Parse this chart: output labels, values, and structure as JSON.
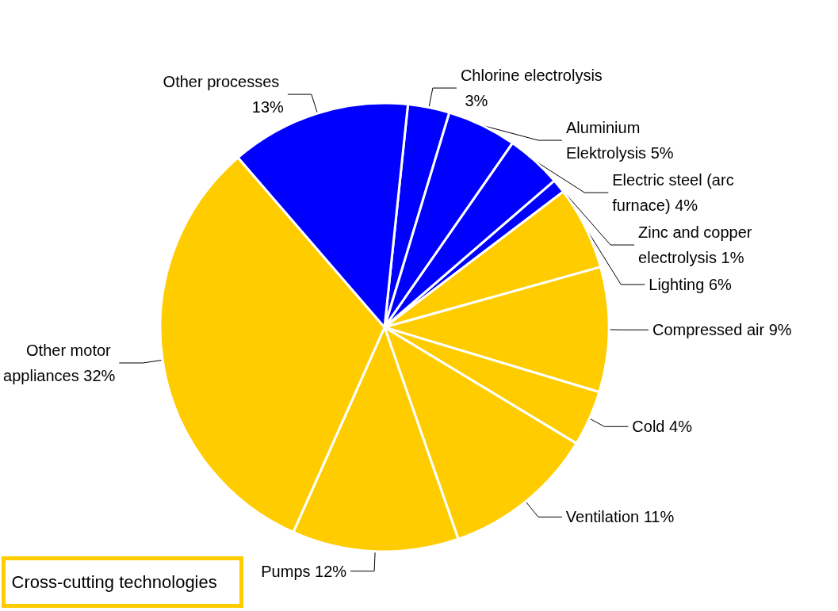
{
  "chart_data": {
    "type": "pie",
    "categories": [
      "Chlorine electrolysis",
      "Aluminium Elektrolysis",
      "Electric steel (arc furnace)",
      "Zinc and copper electrolysis",
      "Lighting",
      "Compressed air",
      "Cold",
      "Ventilation",
      "Pumps",
      "Other motor appliances",
      "Other processes"
    ],
    "values": [
      3,
      5,
      4,
      1,
      6,
      9,
      4,
      11,
      12,
      32,
      13
    ],
    "value_labels": [
      "3%",
      "5%",
      "4%",
      "1%",
      "6%",
      "9%",
      "4%",
      "11%",
      "12%",
      "32%",
      "13%"
    ],
    "colors": [
      "#0000ff",
      "#0000ff",
      "#0000ff",
      "#0000ff",
      "#ffcc00",
      "#ffcc00",
      "#ffcc00",
      "#ffcc00",
      "#ffcc00",
      "#ffcc00",
      "#0000ff"
    ],
    "annotations": [
      "Cross-cutting technologies"
    ]
  }
}
